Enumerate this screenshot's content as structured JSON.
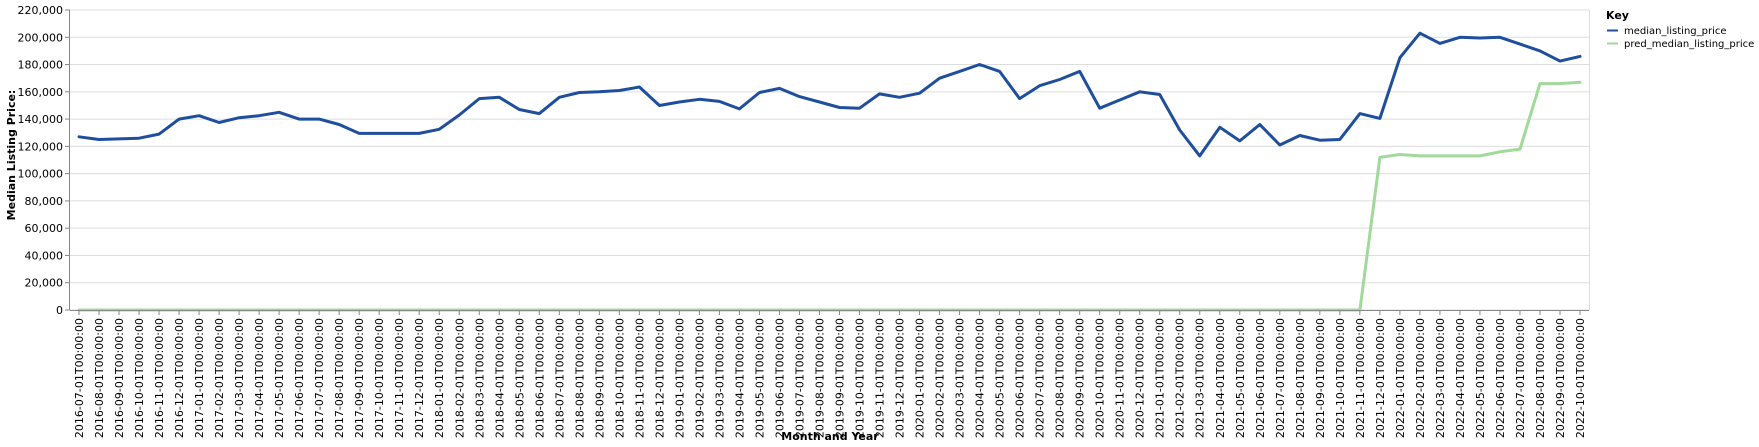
{
  "chart_data": {
    "type": "line",
    "xlabel": "Month and Year",
    "ylabel": "Median Listing Price:",
    "ylim": [
      0,
      220000
    ],
    "yticks": [
      0,
      20000,
      40000,
      60000,
      80000,
      100000,
      120000,
      140000,
      160000,
      180000,
      200000,
      220000
    ],
    "ytick_labels": [
      "0",
      "20,000",
      "40,000",
      "60,000",
      "80,000",
      "100,000",
      "120,000",
      "140,000",
      "160,000",
      "180,000",
      "200,000",
      "220,000"
    ],
    "grid": true,
    "legend": {
      "title": "Key",
      "placement": "top-right"
    },
    "x": [
      "2016-07-01T00:00:00",
      "2016-08-01T00:00:00",
      "2016-09-01T00:00:00",
      "2016-10-01T00:00:00",
      "2016-11-01T00:00:00",
      "2016-12-01T00:00:00",
      "2017-01-01T00:00:00",
      "2017-02-01T00:00:00",
      "2017-03-01T00:00:00",
      "2017-04-01T00:00:00",
      "2017-05-01T00:00:00",
      "2017-06-01T00:00:00",
      "2017-07-01T00:00:00",
      "2017-08-01T00:00:00",
      "2017-09-01T00:00:00",
      "2017-10-01T00:00:00",
      "2017-11-01T00:00:00",
      "2017-12-01T00:00:00",
      "2018-01-01T00:00:00",
      "2018-02-01T00:00:00",
      "2018-03-01T00:00:00",
      "2018-04-01T00:00:00",
      "2018-05-01T00:00:00",
      "2018-06-01T00:00:00",
      "2018-07-01T00:00:00",
      "2018-08-01T00:00:00",
      "2018-09-01T00:00:00",
      "2018-10-01T00:00:00",
      "2018-11-01T00:00:00",
      "2018-12-01T00:00:00",
      "2019-01-01T00:00:00",
      "2019-02-01T00:00:00",
      "2019-03-01T00:00:00",
      "2019-04-01T00:00:00",
      "2019-05-01T00:00:00",
      "2019-06-01T00:00:00",
      "2019-07-01T00:00:00",
      "2019-08-01T00:00:00",
      "2019-09-01T00:00:00",
      "2019-10-01T00:00:00",
      "2019-11-01T00:00:00",
      "2019-12-01T00:00:00",
      "2020-01-01T00:00:00",
      "2020-02-01T00:00:00",
      "2020-03-01T00:00:00",
      "2020-04-01T00:00:00",
      "2020-05-01T00:00:00",
      "2020-06-01T00:00:00",
      "2020-07-01T00:00:00",
      "2020-08-01T00:00:00",
      "2020-09-01T00:00:00",
      "2020-10-01T00:00:00",
      "2020-11-01T00:00:00",
      "2020-12-01T00:00:00",
      "2021-01-01T00:00:00",
      "2021-02-01T00:00:00",
      "2021-03-01T00:00:00",
      "2021-04-01T00:00:00",
      "2021-05-01T00:00:00",
      "2021-06-01T00:00:00",
      "2021-07-01T00:00:00",
      "2021-08-01T00:00:00",
      "2021-09-01T00:00:00",
      "2021-10-01T00:00:00",
      "2021-11-01T00:00:00",
      "2021-12-01T00:00:00",
      "2022-01-01T00:00:00",
      "2022-02-01T00:00:00",
      "2022-03-01T00:00:00",
      "2022-04-01T00:00:00",
      "2022-05-01T00:00:00",
      "2022-06-01T00:00:00",
      "2022-07-01T00:00:00",
      "2022-08-01T00:00:00",
      "2022-09-01T00:00:00",
      "2022-10-01T00:00:00"
    ],
    "series": [
      {
        "name": "median_listing_price",
        "color": "#1f4e9c",
        "values": [
          127000,
          125000,
          125500,
          126000,
          129000,
          140000,
          142500,
          137500,
          141000,
          142500,
          145000,
          140000,
          140000,
          136000,
          129500,
          129500,
          129500,
          129500,
          132500,
          143000,
          155000,
          156000,
          147000,
          144000,
          156000,
          159500,
          160000,
          161000,
          163500,
          150000,
          152500,
          154500,
          153000,
          147500,
          159500,
          162500,
          156500,
          152500,
          148500,
          148000,
          158500,
          156000,
          159000,
          170000,
          175000,
          180000,
          175000,
          155000,
          164500,
          169000,
          175000,
          148000,
          154000,
          160000,
          158000,
          132000,
          113000,
          134000,
          124000,
          136000,
          121000,
          128000,
          124500,
          125000,
          144000,
          140500,
          185000,
          203000,
          195500,
          200000,
          199500,
          200000,
          195000,
          190000,
          182500,
          186000
        ]
      },
      {
        "name": "pred_median_listing_price",
        "color": "#a1d99b",
        "values": [
          0,
          0,
          0,
          0,
          0,
          0,
          0,
          0,
          0,
          0,
          0,
          0,
          0,
          0,
          0,
          0,
          0,
          0,
          0,
          0,
          0,
          0,
          0,
          0,
          0,
          0,
          0,
          0,
          0,
          0,
          0,
          0,
          0,
          0,
          0,
          0,
          0,
          0,
          0,
          0,
          0,
          0,
          0,
          0,
          0,
          0,
          0,
          0,
          0,
          0,
          0,
          0,
          0,
          0,
          0,
          0,
          0,
          0,
          0,
          0,
          0,
          0,
          0,
          0,
          0,
          112000,
          114000,
          113000,
          113000,
          113000,
          113000,
          116000,
          118000,
          166000,
          166000,
          167000
        ]
      }
    ]
  }
}
